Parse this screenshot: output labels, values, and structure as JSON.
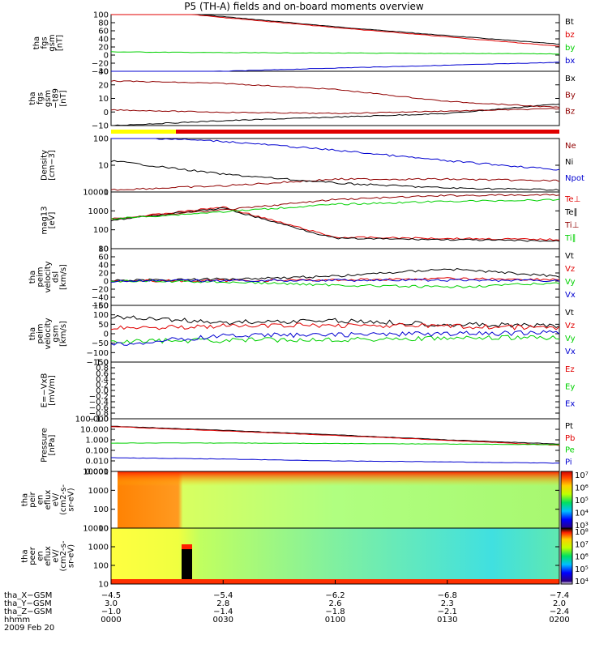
{
  "title": "P5 (TH-A) fields and on-board moments overview",
  "colors": {
    "black": "#000000",
    "red": "#e00000",
    "green": "#00d000",
    "blue": "#0000d0",
    "darkred": "#900000",
    "yellow": "#ffff00"
  },
  "panels": [
    {
      "id": "fgs",
      "ylabel": [
        "tha",
        "fgs",
        "gsm",
        "[nT]"
      ],
      "ticks": [
        "100",
        "80",
        "60",
        "40",
        "20",
        "0",
        "−20",
        "−40"
      ],
      "legend": [
        {
          "text": "Bt",
          "color": "black"
        },
        {
          "text": "bz",
          "color": "red"
        },
        {
          "text": "by",
          "color": "green"
        },
        {
          "text": "bx",
          "color": "blue"
        }
      ]
    },
    {
      "id": "fgs_t89",
      "ylabel": [
        "tha",
        "fgs",
        "gsm",
        "−t89",
        "[nT]"
      ],
      "ticks": [
        "30",
        "20",
        "10",
        "0",
        "−10"
      ],
      "legend": [
        {
          "text": "Bx",
          "color": "black"
        },
        {
          "text": "By",
          "color": "darkred"
        },
        {
          "text": "Bz",
          "color": "darkred"
        }
      ]
    },
    {
      "id": "density",
      "ylabel": [
        "Density",
        "[cm−3]"
      ],
      "ticks": [
        "100",
        "10",
        "1"
      ],
      "legend": [
        {
          "text": "Ne",
          "color": "darkred"
        },
        {
          "text": "Ni",
          "color": "black"
        },
        {
          "text": "Npot",
          "color": "blue"
        }
      ]
    },
    {
      "id": "temp",
      "ylabel": [
        "mag13",
        "[eV]"
      ],
      "ticks": [
        "10000",
        "1000",
        "100",
        "10"
      ],
      "legend": [
        {
          "text": "Te⊥",
          "color": "red"
        },
        {
          "text": "Te∥",
          "color": "black"
        },
        {
          "text": "Ti⊥",
          "color": "darkred"
        },
        {
          "text": "Ti∥",
          "color": "green"
        }
      ]
    },
    {
      "id": "peim_dsl",
      "ylabel": [
        "tha",
        "peim",
        "velocity",
        "dsl",
        "[km/s]"
      ],
      "ticks": [
        "80",
        "60",
        "40",
        "20",
        "0",
        "−20",
        "−40",
        "−60"
      ],
      "legend": [
        {
          "text": "Vt",
          "color": "black"
        },
        {
          "text": "Vz",
          "color": "red"
        },
        {
          "text": "Vy",
          "color": "green"
        },
        {
          "text": "Vx",
          "color": "blue"
        }
      ]
    },
    {
      "id": "peim_gsm",
      "ylabel": [
        "tha",
        "peim",
        "velocity",
        "gsm",
        "[km/s]"
      ],
      "ticks": [
        "150",
        "100",
        "50",
        "0",
        "−50",
        "−100",
        "−150"
      ],
      "legend": [
        {
          "text": "Vt",
          "color": "black"
        },
        {
          "text": "Vz",
          "color": "red"
        },
        {
          "text": "Vy",
          "color": "green"
        },
        {
          "text": "Vx",
          "color": "blue"
        }
      ]
    },
    {
      "id": "efield",
      "ylabel": [
        "E=−VxB",
        "[mV/m]"
      ],
      "ticks": [
        "1.0",
        "0.8",
        "0.6",
        "0.4",
        "0.2",
        "0.0",
        "−0.2",
        "−0.4",
        "−0.6",
        "−0.8",
        "−1.0"
      ],
      "legend": [
        {
          "text": "Ez",
          "color": "red"
        },
        {
          "text": "Ey",
          "color": "green"
        },
        {
          "text": "Ex",
          "color": "blue"
        }
      ]
    },
    {
      "id": "pressure",
      "ylabel": [
        "Pressure",
        "[nPa]"
      ],
      "ticks": [
        "100.000",
        "10.000",
        "1.000",
        "0.100",
        "0.010",
        "0.001"
      ],
      "legend": [
        {
          "text": "Pt",
          "color": "black"
        },
        {
          "text": "Pb",
          "color": "red"
        },
        {
          "text": "Pe",
          "color": "green"
        },
        {
          "text": "Pi",
          "color": "blue"
        }
      ]
    },
    {
      "id": "peir",
      "ylabel": [
        "tha",
        "peir",
        "en",
        "eflux",
        "eV/",
        "(cm2-s-",
        "sr-eV)"
      ],
      "ticks": [
        "10000",
        "1000",
        "100",
        "10"
      ],
      "colorbar": [
        "10⁷",
        "10⁶",
        "10⁵",
        "10⁴",
        "10³"
      ]
    },
    {
      "id": "peer",
      "ylabel": [
        "tha",
        "peer",
        "en",
        "eflux",
        "eV/",
        "(cm2-s-",
        "sr-eV)"
      ],
      "ticks": [
        "10000",
        "1000",
        "100",
        "10"
      ],
      "colorbar": [
        "10⁸",
        "10⁷",
        "10⁶",
        "10⁵",
        "10⁴"
      ]
    }
  ],
  "xaxis": {
    "rows": [
      {
        "label": "tha_X−GSM",
        "values": [
          "−4.5",
          "−5.4",
          "−6.2",
          "−6.8",
          "−7.4"
        ]
      },
      {
        "label": "tha_Y−GSM",
        "values": [
          "3.0",
          "2.8",
          "2.6",
          "2.3",
          "2.0"
        ]
      },
      {
        "label": "tha_Z−GSM",
        "values": [
          "−1.0",
          "−1.4",
          "−1.8",
          "−2.1",
          "−2.4"
        ]
      },
      {
        "label": "hhmm",
        "values": [
          "0000",
          "0030",
          "0100",
          "0130",
          "0200"
        ]
      }
    ],
    "date": "2009 Feb 20"
  },
  "chart_data": {
    "type": "line",
    "title": "P5 (TH-A) fields and on-board moments overview",
    "time_hhmm": [
      "0000",
      "0030",
      "0100",
      "0130",
      "0200"
    ],
    "panels": [
      {
        "id": "fgs",
        "ylim": [
          -40,
          100
        ],
        "series": [
          {
            "name": "Bt",
            "values": [
              120,
              95,
              70,
              48,
              27
            ]
          },
          {
            "name": "bz",
            "values": [
              120,
              93,
              68,
              45,
              22
            ]
          },
          {
            "name": "by",
            "values": [
              8,
              6,
              5,
              4,
              3
            ]
          },
          {
            "name": "bx",
            "values": [
              -45,
              -40,
              -32,
              -25,
              -18
            ]
          }
        ]
      },
      {
        "id": "fgs_t89",
        "ylim": [
          -15,
          30
        ],
        "series": [
          {
            "name": "Bx",
            "values": [
              -15,
              -11,
              -8,
              -5,
              3
            ]
          },
          {
            "name": "By",
            "values": [
              22,
              20,
              15,
              5,
              0
            ]
          },
          {
            "name": "Bz",
            "values": [
              -2,
              -4,
              -5,
              -3,
              -1
            ]
          }
        ]
      },
      {
        "id": "density",
        "scale": "log",
        "ylim": [
          0.8,
          200
        ],
        "series": [
          {
            "name": "Ne",
            "values": [
              1,
              1.5,
              3,
              3,
              2.5
            ]
          },
          {
            "name": "Ni",
            "values": [
              20,
              5,
              2,
              1.2,
              1
            ]
          },
          {
            "name": "Npot",
            "values": [
              250,
              150,
              60,
              20,
              8
            ]
          }
        ]
      },
      {
        "id": "temp",
        "scale": "log",
        "ylim": [
          10,
          10000
        ],
        "series": [
          {
            "name": "Te⊥",
            "values": [
              350,
              1600,
              40,
              35,
              30
            ]
          },
          {
            "name": "Te∥",
            "values": [
              320,
              1400,
              35,
              30,
              25
            ]
          },
          {
            "name": "Ti⊥",
            "values": [
              400,
              1100,
              4000,
              6500,
              7000
            ]
          },
          {
            "name": "Ti∥",
            "values": [
              380,
              900,
              2200,
              3200,
              3800
            ]
          }
        ]
      },
      {
        "id": "peim_dsl",
        "ylim": [
          -60,
          80
        ],
        "series": [
          {
            "name": "Vt",
            "values": [
              2,
              5,
              12,
              30,
              12
            ]
          },
          {
            "name": "Vz",
            "values": [
              0,
              1,
              3,
              6,
              4
            ]
          },
          {
            "name": "Vy",
            "values": [
              0,
              -2,
              -10,
              -15,
              -5
            ]
          },
          {
            "name": "Vx",
            "values": [
              0,
              1,
              2,
              2,
              1
            ]
          }
        ]
      },
      {
        "id": "peim_gsm",
        "ylim": [
          -150,
          150
        ],
        "series": [
          {
            "name": "Vt",
            "values": [
              90,
              60,
              70,
              50,
              40
            ]
          },
          {
            "name": "Vz",
            "values": [
              30,
              40,
              45,
              40,
              30
            ]
          },
          {
            "name": "Vy",
            "values": [
              -40,
              -35,
              -30,
              -25,
              -20
            ]
          },
          {
            "name": "Vx",
            "values": [
              -60,
              -10,
              -5,
              0,
              5
            ]
          }
        ]
      },
      {
        "id": "efield",
        "ylim": [
          -1,
          1
        ],
        "series": []
      },
      {
        "id": "pressure",
        "scale": "log",
        "ylim": [
          0.001,
          100
        ],
        "series": [
          {
            "name": "Pt",
            "values": [
              20,
              8,
              3,
              1,
              0.4
            ]
          },
          {
            "name": "Pb",
            "values": [
              18,
              7,
              2.6,
              0.9,
              0.3
            ]
          },
          {
            "name": "Pe",
            "values": [
              0.5,
              0.5,
              0.45,
              0.4,
              0.35
            ]
          },
          {
            "name": "Pi",
            "values": [
              0.02,
              0.015,
              0.01,
              0.008,
              0.006
            ]
          }
        ]
      }
    ]
  }
}
